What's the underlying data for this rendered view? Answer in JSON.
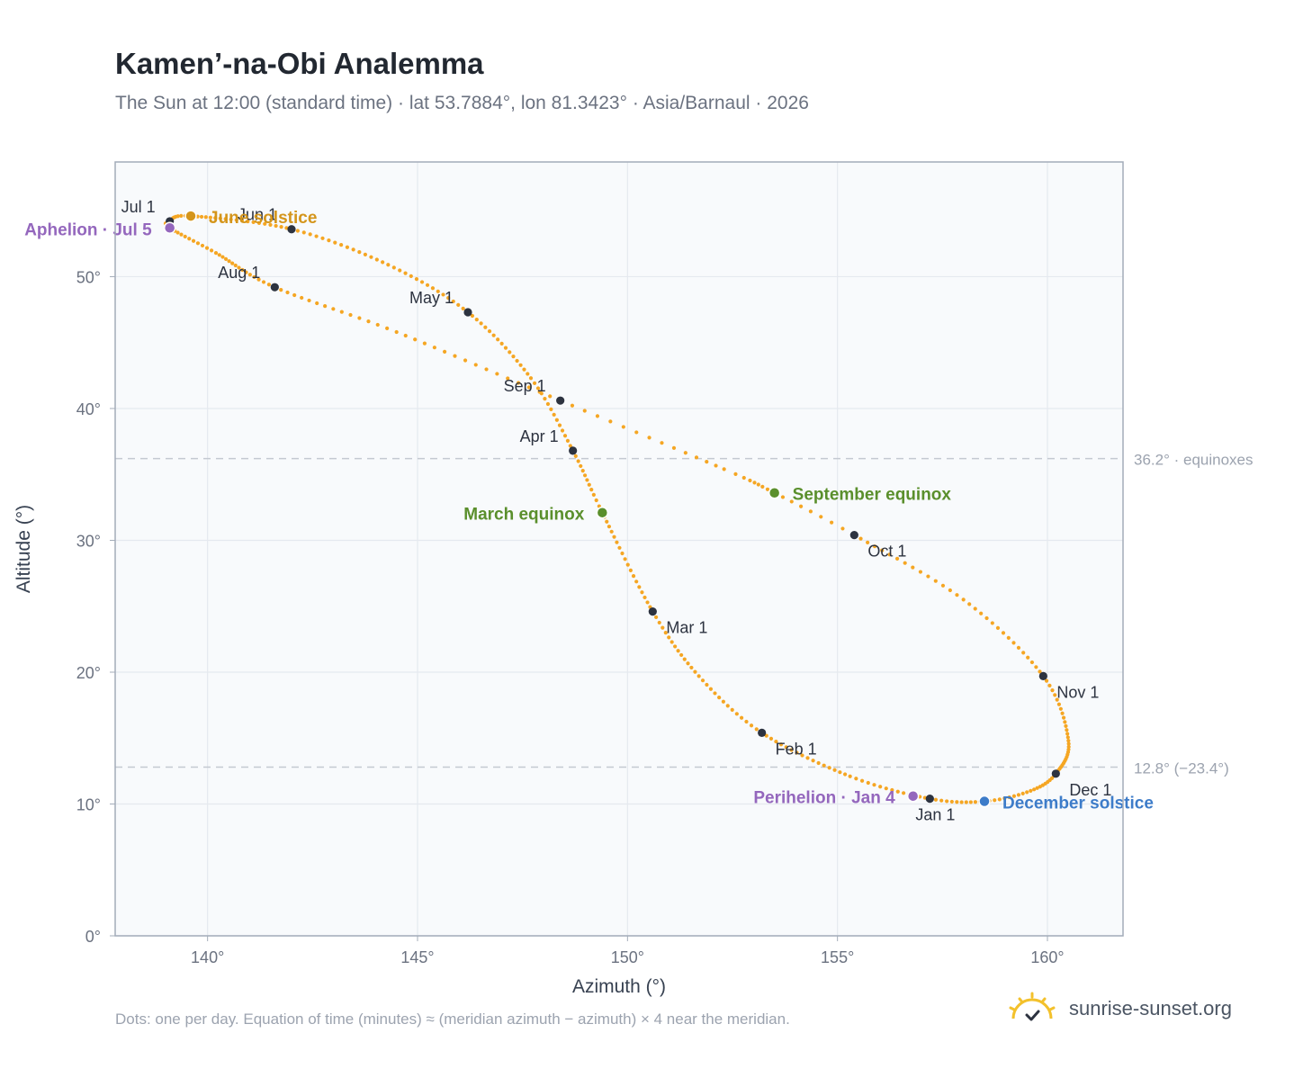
{
  "title": "Kamen’-na-Obi Analemma",
  "subtitle": "The Sun at 12:00 (standard time) · lat 53.7884°, lon 81.3423° · Asia/Barnaul · 2026",
  "footnote": "Dots: one per day. Equation of time (minutes) ≈ (meridian azimuth − azimuth) × 4 near the meridian.",
  "brand": {
    "name": "sunrise-sunset.org",
    "icon": "sun-logo-icon"
  },
  "colors": {
    "curve": "#f5a623",
    "month_marker": "#2d3340",
    "equinox": "#5a8f2c",
    "june_solstice": "#d4951b",
    "december_solstice": "#3d7cc9",
    "apsis": "#9467bd",
    "reference_line": "#c4c9d1",
    "plot_background": "#f8fafc",
    "grid": "#e5e9ef",
    "axis_frame": "#a3acb9"
  },
  "chart_data": {
    "type": "scatter",
    "xlabel": "Azimuth (°)",
    "ylabel": "Altitude (°)",
    "xlim": [
      137.8,
      161.8
    ],
    "ylim": [
      0,
      58.7
    ],
    "x_ticks": [
      140,
      145,
      150,
      155,
      160
    ],
    "x_tick_labels": [
      "140°",
      "145°",
      "150°",
      "155°",
      "160°"
    ],
    "y_ticks": [
      0,
      10,
      20,
      30,
      40,
      50
    ],
    "y_tick_labels": [
      "0°",
      "10°",
      "20°",
      "30°",
      "40°",
      "50°"
    ],
    "grid": true,
    "legend": "none",
    "reference_lines": [
      {
        "y": 36.2,
        "label": "36.2° · equinoxes"
      },
      {
        "y": 12.8,
        "label": "12.8° (−23.4°)"
      }
    ],
    "curve_anchors": [
      {
        "day": 1,
        "az": 157.2,
        "alt": 10.4
      },
      {
        "day": 15,
        "az": 155.3,
        "alt": 12.1
      },
      {
        "day": 32,
        "az": 153.2,
        "alt": 15.4
      },
      {
        "day": 46,
        "az": 151.7,
        "alt": 19.7
      },
      {
        "day": 60,
        "az": 150.6,
        "alt": 24.6
      },
      {
        "day": 79,
        "az": 149.4,
        "alt": 32.1
      },
      {
        "day": 91,
        "az": 148.7,
        "alt": 36.8
      },
      {
        "day": 105,
        "az": 147.7,
        "alt": 42.3
      },
      {
        "day": 121,
        "az": 146.2,
        "alt": 47.3
      },
      {
        "day": 136,
        "az": 144.3,
        "alt": 50.9
      },
      {
        "day": 152,
        "az": 142.0,
        "alt": 53.6
      },
      {
        "day": 172,
        "az": 139.6,
        "alt": 54.6
      },
      {
        "day": 182,
        "az": 139.1,
        "alt": 54.2
      },
      {
        "day": 186,
        "az": 139.1,
        "alt": 53.7
      },
      {
        "day": 198,
        "az": 140.2,
        "alt": 51.8
      },
      {
        "day": 213,
        "az": 141.6,
        "alt": 49.2
      },
      {
        "day": 228,
        "az": 144.5,
        "alt": 45.8
      },
      {
        "day": 244,
        "az": 148.4,
        "alt": 40.6
      },
      {
        "day": 258,
        "az": 152.3,
        "alt": 35.4
      },
      {
        "day": 266,
        "az": 153.5,
        "alt": 33.6
      },
      {
        "day": 274,
        "az": 155.4,
        "alt": 30.4
      },
      {
        "day": 289,
        "az": 158.0,
        "alt": 25.5
      },
      {
        "day": 305,
        "az": 159.9,
        "alt": 19.7
      },
      {
        "day": 320,
        "az": 160.5,
        "alt": 14.8
      },
      {
        "day": 335,
        "az": 160.2,
        "alt": 12.3
      },
      {
        "day": 345,
        "az": 159.6,
        "alt": 11.0
      },
      {
        "day": 355,
        "az": 158.5,
        "alt": 10.2
      },
      {
        "day": 366,
        "az": 157.2,
        "alt": 10.4
      }
    ],
    "month_markers": [
      {
        "label": "Jan 1",
        "az": 157.2,
        "alt": 10.4,
        "pos": "below"
      },
      {
        "label": "Feb 1",
        "az": 153.2,
        "alt": 15.4,
        "pos": "right-below"
      },
      {
        "label": "Mar 1",
        "az": 150.6,
        "alt": 24.6,
        "pos": "right-below"
      },
      {
        "label": "Apr 1",
        "az": 148.7,
        "alt": 36.8,
        "pos": "left-above"
      },
      {
        "label": "May 1",
        "az": 146.2,
        "alt": 47.3,
        "pos": "left-above"
      },
      {
        "label": "Jun 1",
        "az": 142.0,
        "alt": 53.6,
        "pos": "left-above"
      },
      {
        "label": "Jul 1",
        "az": 139.1,
        "alt": 54.2,
        "pos": "left-above"
      },
      {
        "label": "Aug 1",
        "az": 141.6,
        "alt": 49.2,
        "pos": "left-above"
      },
      {
        "label": "Sep 1",
        "az": 148.4,
        "alt": 40.6,
        "pos": "left-above"
      },
      {
        "label": "Oct 1",
        "az": 155.4,
        "alt": 30.4,
        "pos": "right-below"
      },
      {
        "label": "Nov 1",
        "az": 159.9,
        "alt": 19.7,
        "pos": "right-below"
      },
      {
        "label": "Dec 1",
        "az": 160.2,
        "alt": 12.3,
        "pos": "right-below"
      }
    ],
    "events": [
      {
        "label": "June solstice",
        "az": 139.6,
        "alt": 54.6,
        "color": "#d4951b",
        "side": "right"
      },
      {
        "label": "Aphelion · Jul 5",
        "az": 139.1,
        "alt": 53.7,
        "color": "#9467bd",
        "side": "left"
      },
      {
        "label": "March equinox",
        "az": 149.4,
        "alt": 32.1,
        "color": "#5a8f2c",
        "side": "left"
      },
      {
        "label": "September equinox",
        "az": 153.5,
        "alt": 33.6,
        "color": "#5a8f2c",
        "side": "right"
      },
      {
        "label": "Perihelion · Jan 4",
        "az": 156.8,
        "alt": 10.6,
        "color": "#9467bd",
        "side": "left"
      },
      {
        "label": "December solstice",
        "az": 158.5,
        "alt": 10.2,
        "color": "#3d7cc9",
        "side": "right"
      }
    ]
  }
}
